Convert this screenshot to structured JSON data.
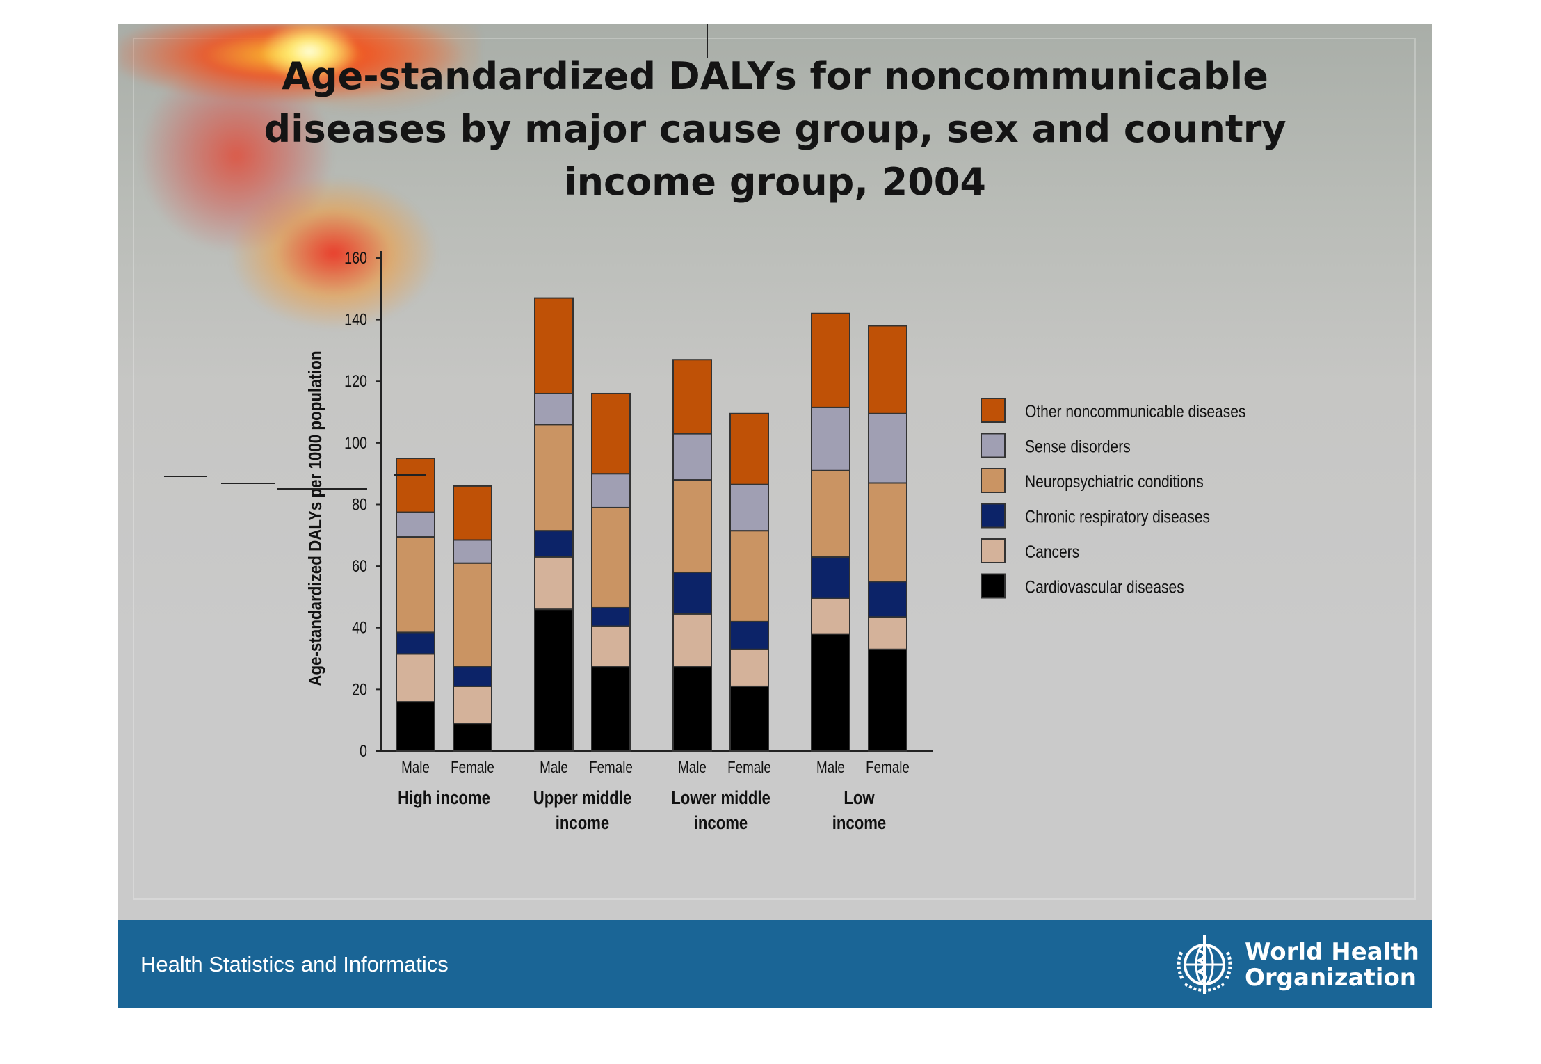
{
  "slide": {
    "title": "Age-standardized DALYs for noncommunicable\ndiseases by major cause group,  sex and country\nincome group, 2004",
    "footer_text": "Health Statistics and Informatics",
    "organization": "World Health\nOrganization",
    "colors": {
      "footer": "#1a6596",
      "background": "#cacaca"
    }
  },
  "chart_data": {
    "type": "bar",
    "stacked": true,
    "title": "",
    "xlabel": "",
    "ylabel": "Age-standardized DALYs per 1000 population",
    "ylim": [
      0,
      160
    ],
    "yticks": [
      0,
      20,
      40,
      60,
      80,
      100,
      120,
      140,
      160
    ],
    "grid": false,
    "legend_position": "right",
    "groups": [
      {
        "label": "High income",
        "categories": [
          "Male",
          "Female"
        ]
      },
      {
        "label": "Upper middle\nincome",
        "categories": [
          "Male",
          "Female"
        ]
      },
      {
        "label": "Lower middle\nincome",
        "categories": [
          "Male",
          "Female"
        ]
      },
      {
        "label": "Low\nincome",
        "categories": [
          "Male",
          "Female"
        ]
      }
    ],
    "categories": [
      "Male",
      "Female",
      "Male",
      "Female",
      "Male",
      "Female",
      "Male",
      "Female"
    ],
    "series": [
      {
        "name": "Cardiovascular diseases",
        "color": "#000000",
        "values": [
          16,
          9,
          46,
          27.5,
          27.5,
          21,
          38,
          33
        ]
      },
      {
        "name": "Cancers",
        "color": "#d4b29a",
        "values": [
          15.5,
          12,
          17,
          13,
          17,
          12,
          11.5,
          10.5
        ]
      },
      {
        "name": "Chronic respiratory diseases",
        "color": "#0c2368",
        "values": [
          7,
          6.5,
          8.5,
          6,
          13.5,
          9,
          13.5,
          11.5
        ]
      },
      {
        "name": "Neuropsychiatric conditions",
        "color": "#ca9463",
        "values": [
          31,
          33.5,
          34.5,
          32.5,
          30,
          29.5,
          28,
          32
        ]
      },
      {
        "name": "Sense disorders",
        "color": "#a09fb3",
        "values": [
          8,
          7.5,
          10,
          11,
          15,
          15,
          20.5,
          22.5
        ]
      },
      {
        "name": "Other noncommunicable diseases",
        "color": "#bf5106",
        "values": [
          17.5,
          17.5,
          31,
          26,
          24,
          23,
          30.5,
          28.5
        ]
      }
    ]
  }
}
